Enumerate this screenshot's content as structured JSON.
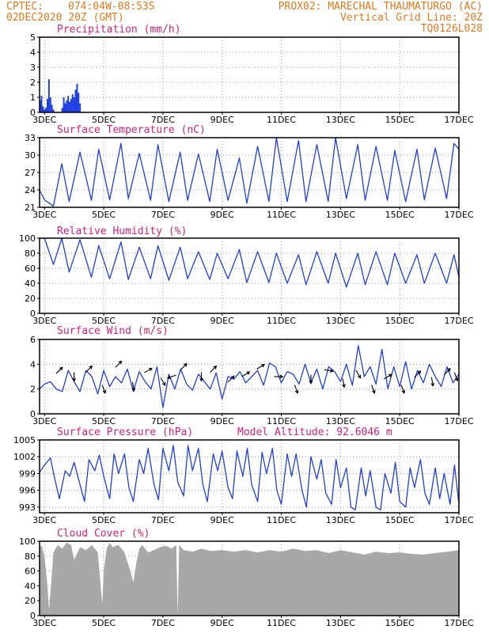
{
  "header": {
    "line1_left": "CPTEC:",
    "line1_coords": "074:04W-08:53S",
    "line1_right": "PROX02: MARECHAL THAUMATURGO (AC)",
    "line2_left": "02DEC2020 20Z (GMT)",
    "line2_right": "Vertical Grid Line: 20Z",
    "line3_right": "TQ0126L028"
  },
  "colors": {
    "header": "#e07a1f",
    "panel_title": "#d6207a",
    "series_line": "#1f3fe0",
    "precip_bar": "#1f3fe0",
    "cloud_fill": "#a8a8a8",
    "wind_arrow": "#000000"
  },
  "x_axis": {
    "start": "02DEC2020 20Z",
    "ticks": [
      {
        "day": 3,
        "label": "3DEC"
      },
      {
        "day": 5,
        "label": "5DEC"
      },
      {
        "day": 7,
        "label": "7DEC"
      },
      {
        "day": 9,
        "label": "9DEC"
      },
      {
        "day": 11,
        "label": "11DEC"
      },
      {
        "day": 13,
        "label": "13DEC"
      },
      {
        "day": 15,
        "label": "15DEC"
      },
      {
        "day": 17,
        "label": "17DEC"
      }
    ]
  },
  "chart_data": [
    {
      "type": "bar",
      "title": "Precipitation (mm/h)",
      "ylim": [
        0,
        5
      ],
      "yticks": [
        0,
        1,
        2,
        3,
        4,
        5
      ],
      "x": [
        2.85,
        2.9,
        2.95,
        3.0,
        3.05,
        3.1,
        3.15,
        3.2,
        3.25,
        3.3,
        3.6,
        3.65,
        3.7,
        3.75,
        3.8,
        3.85,
        3.9,
        3.95,
        4.0,
        4.05,
        4.1,
        4.15,
        4.2
      ],
      "values": [
        0.8,
        1.1,
        0.4,
        0.2,
        0.3,
        0.9,
        2.2,
        1.0,
        0.5,
        0.2,
        0.3,
        1.0,
        0.6,
        0.8,
        1.1,
        0.7,
        0.9,
        1.2,
        1.0,
        1.5,
        1.9,
        1.3,
        0.6
      ]
    },
    {
      "type": "line",
      "title": "Surface Temperature (nC)",
      "ylim": [
        21,
        33
      ],
      "yticks": [
        21,
        24,
        27,
        30,
        33
      ],
      "x": [
        2.833,
        3.0,
        3.3,
        3.583,
        3.833,
        4.2,
        4.583,
        4.833,
        5.2,
        5.583,
        5.833,
        6.2,
        6.583,
        6.833,
        7.2,
        7.583,
        7.833,
        8.2,
        8.583,
        8.833,
        9.2,
        9.583,
        9.833,
        10.2,
        10.583,
        10.833,
        11.2,
        11.583,
        11.833,
        12.2,
        12.583,
        12.833,
        13.2,
        13.583,
        13.833,
        14.2,
        14.583,
        14.833,
        15.2,
        15.583,
        15.833,
        16.2,
        16.583,
        16.833,
        17.0
      ],
      "values": [
        24.0,
        22.3,
        21.2,
        28.5,
        22.0,
        30.5,
        22.2,
        31.0,
        22.3,
        32.0,
        22.5,
        30.3,
        22.2,
        31.8,
        22.0,
        30.5,
        22.2,
        30.2,
        22.0,
        31.0,
        22.2,
        29.5,
        21.7,
        31.5,
        22.0,
        33.0,
        22.0,
        32.5,
        22.0,
        31.8,
        22.0,
        33.0,
        22.5,
        31.8,
        22.2,
        31.5,
        22.2,
        30.8,
        22.0,
        31.0,
        22.3,
        31.2,
        22.5,
        32.0,
        31.0
      ]
    },
    {
      "type": "line",
      "title": "Relative Humidity (%)",
      "ylim": [
        0,
        100
      ],
      "yticks": [
        0,
        20,
        40,
        60,
        80,
        100
      ],
      "x": [
        2.833,
        3.0,
        3.3,
        3.583,
        3.833,
        4.2,
        4.583,
        4.833,
        5.2,
        5.583,
        5.833,
        6.2,
        6.583,
        6.833,
        7.2,
        7.583,
        7.833,
        8.2,
        8.583,
        8.833,
        9.2,
        9.583,
        9.833,
        10.2,
        10.583,
        10.833,
        11.2,
        11.583,
        11.833,
        12.2,
        12.583,
        12.833,
        13.2,
        13.583,
        13.833,
        14.2,
        14.583,
        14.833,
        15.2,
        15.583,
        15.833,
        16.2,
        16.583,
        16.833,
        17.0
      ],
      "values": [
        100,
        100,
        65,
        100,
        55,
        98,
        48,
        90,
        46,
        95,
        45,
        88,
        46,
        90,
        44,
        88,
        46,
        82,
        45,
        80,
        46,
        85,
        41,
        82,
        41,
        80,
        40,
        78,
        38,
        82,
        40,
        80,
        35,
        80,
        38,
        82,
        38,
        80,
        40,
        78,
        40,
        80,
        40,
        78,
        48
      ]
    },
    {
      "type": "line",
      "title": "Surface Wind (m/s)",
      "ylim": [
        0,
        6
      ],
      "yticks": [
        0,
        2,
        4,
        6
      ],
      "x": [
        2.833,
        3.0,
        3.2,
        3.4,
        3.6,
        3.8,
        4.0,
        4.2,
        4.4,
        4.6,
        4.8,
        5.0,
        5.2,
        5.4,
        5.6,
        5.8,
        6.0,
        6.2,
        6.4,
        6.6,
        6.8,
        7.0,
        7.2,
        7.4,
        7.6,
        7.8,
        8.0,
        8.2,
        8.4,
        8.6,
        8.8,
        9.0,
        9.2,
        9.4,
        9.6,
        9.8,
        10.0,
        10.2,
        10.4,
        10.6,
        10.8,
        11.0,
        11.2,
        11.4,
        11.6,
        11.8,
        12.0,
        12.2,
        12.4,
        12.6,
        12.8,
        13.0,
        13.2,
        13.4,
        13.6,
        13.8,
        14.0,
        14.2,
        14.4,
        14.6,
        14.8,
        15.0,
        15.2,
        15.4,
        15.6,
        15.8,
        16.0,
        16.2,
        16.4,
        16.6,
        16.8,
        17.0
      ],
      "values": [
        2.0,
        2.4,
        2.6,
        2.0,
        1.8,
        3.5,
        2.6,
        1.8,
        3.5,
        3.0,
        1.6,
        3.5,
        2.2,
        3.0,
        2.5,
        3.6,
        1.8,
        3.4,
        2.6,
        2.0,
        3.8,
        0.5,
        3.2,
        2.0,
        3.6,
        2.4,
        1.9,
        3.2,
        2.6,
        2.0,
        3.3,
        1.2,
        3.0,
        2.8,
        3.4,
        2.5,
        3.0,
        3.5,
        2.3,
        4.1,
        3.8,
        2.5,
        3.4,
        3.2,
        2.4,
        4.0,
        2.5,
        3.6,
        2.0,
        3.8,
        3.4,
        2.6,
        4.0,
        2.3,
        5.5,
        3.0,
        3.8,
        2.4,
        5.2,
        2.0,
        3.8,
        2.2,
        4.2,
        2.0,
        3.5,
        2.5,
        4.0,
        3.0,
        2.2,
        3.8,
        2.5,
        3.2
      ],
      "arrows": [
        {
          "x": 3.5,
          "y": 3.5,
          "dir": 45
        },
        {
          "x": 4.0,
          "y": 3.0,
          "dir": 180
        },
        {
          "x": 4.5,
          "y": 3.6,
          "dir": 45
        },
        {
          "x": 5.0,
          "y": 2.0,
          "dir": 160
        },
        {
          "x": 5.5,
          "y": 4.0,
          "dir": 45
        },
        {
          "x": 6.0,
          "y": 2.2,
          "dir": 170
        },
        {
          "x": 6.5,
          "y": 3.5,
          "dir": 60
        },
        {
          "x": 7.0,
          "y": 2.6,
          "dir": 150
        },
        {
          "x": 7.3,
          "y": 3.0,
          "dir": 250
        },
        {
          "x": 7.7,
          "y": 3.8,
          "dir": 45
        },
        {
          "x": 8.3,
          "y": 3.0,
          "dir": 180
        },
        {
          "x": 8.7,
          "y": 3.6,
          "dir": 45
        },
        {
          "x": 9.3,
          "y": 2.8,
          "dir": 45
        },
        {
          "x": 9.8,
          "y": 3.2,
          "dir": 60
        },
        {
          "x": 10.3,
          "y": 3.8,
          "dir": 60
        },
        {
          "x": 10.9,
          "y": 3.0,
          "dir": 90
        },
        {
          "x": 11.5,
          "y": 2.0,
          "dir": 160
        },
        {
          "x": 12.0,
          "y": 2.8,
          "dir": 180
        },
        {
          "x": 12.6,
          "y": 3.5,
          "dir": 100
        },
        {
          "x": 13.1,
          "y": 2.5,
          "dir": 170
        },
        {
          "x": 13.6,
          "y": 3.2,
          "dir": 150
        },
        {
          "x": 14.1,
          "y": 2.0,
          "dir": 160
        },
        {
          "x": 14.6,
          "y": 3.0,
          "dir": 60
        },
        {
          "x": 15.1,
          "y": 2.0,
          "dir": 160
        },
        {
          "x": 15.6,
          "y": 3.2,
          "dir": 45
        },
        {
          "x": 16.1,
          "y": 2.6,
          "dir": 170
        },
        {
          "x": 16.6,
          "y": 3.4,
          "dir": 45
        },
        {
          "x": 16.9,
          "y": 3.0,
          "dir": 160
        }
      ]
    },
    {
      "type": "line",
      "title": "Surface Pressure (hPa)",
      "annotation": "Model Altitude: 92.6046 m",
      "ylim": [
        992,
        1005
      ],
      "yticks": [
        993,
        996,
        999,
        1002,
        1005
      ],
      "x": [
        2.833,
        3.0,
        3.2,
        3.35,
        3.5,
        3.7,
        3.85,
        4.0,
        4.2,
        4.35,
        4.5,
        4.7,
        4.85,
        5.0,
        5.2,
        5.35,
        5.5,
        5.7,
        5.85,
        6.0,
        6.2,
        6.35,
        6.5,
        6.7,
        6.85,
        7.0,
        7.2,
        7.35,
        7.5,
        7.7,
        7.85,
        8.0,
        8.2,
        8.35,
        8.5,
        8.7,
        8.85,
        9.0,
        9.2,
        9.35,
        9.5,
        9.7,
        9.85,
        10.0,
        10.2,
        10.35,
        10.5,
        10.7,
        10.85,
        11.0,
        11.2,
        11.35,
        11.5,
        11.7,
        11.85,
        12.0,
        12.2,
        12.35,
        12.5,
        12.7,
        12.85,
        13.0,
        13.2,
        13.35,
        13.5,
        13.7,
        13.85,
        14.0,
        14.2,
        14.35,
        14.5,
        14.7,
        14.85,
        15.0,
        15.2,
        15.35,
        15.5,
        15.7,
        15.85,
        16.0,
        16.2,
        16.35,
        16.5,
        16.7,
        16.85,
        17.0
      ],
      "values": [
        999.2,
        1000.5,
        1001.8,
        998.0,
        994.5,
        999.5,
        998.5,
        1001.0,
        997.0,
        994.0,
        1001.5,
        999.5,
        1002.3,
        998.5,
        994.5,
        1002.5,
        999.0,
        1002.5,
        996.5,
        994.0,
        1001.5,
        999.0,
        1003.5,
        997.0,
        994.3,
        1003.5,
        999.5,
        1004.0,
        997.5,
        995.0,
        1004.0,
        999.5,
        1003.5,
        997.0,
        994.0,
        1002.5,
        999.5,
        1003.0,
        996.5,
        994.5,
        1003.0,
        998.5,
        1003.5,
        997.0,
        994.0,
        1002.8,
        999.0,
        1003.5,
        996.0,
        993.5,
        1002.5,
        998.5,
        1002.5,
        996.0,
        993.0,
        1002.0,
        998.0,
        1001.5,
        995.5,
        993.5,
        1001.5,
        996.5,
        1000.0,
        993.0,
        992.5,
        1000.0,
        995.0,
        999.5,
        993.0,
        992.5,
        999.0,
        995.5,
        1001.0,
        994.0,
        993.0,
        1000.0,
        996.5,
        1001.5,
        995.5,
        993.5,
        1000.0,
        994.5,
        999.0,
        993.5,
        1000.5,
        993.5
      ]
    },
    {
      "type": "area",
      "title": "Cloud Cover (%)",
      "ylim": [
        0,
        100
      ],
      "yticks": [
        0,
        20,
        40,
        60,
        80,
        100
      ],
      "x": [
        2.833,
        2.9,
        3.0,
        3.1,
        3.15,
        3.2,
        3.3,
        3.45,
        3.6,
        3.75,
        3.9,
        4.0,
        4.2,
        4.4,
        4.6,
        4.8,
        4.95,
        5.0,
        5.1,
        5.2,
        5.3,
        5.5,
        5.7,
        5.9,
        6.0,
        6.1,
        6.2,
        6.3,
        6.5,
        6.7,
        6.9,
        7.1,
        7.3,
        7.45,
        7.5,
        7.55,
        7.7,
        8.0,
        8.3,
        8.6,
        9.0,
        9.4,
        9.8,
        10.2,
        10.6,
        11.0,
        11.4,
        11.8,
        12.2,
        12.6,
        13.0,
        13.4,
        13.8,
        14.2,
        14.6,
        15.0,
        15.4,
        15.8,
        16.2,
        16.6,
        17.0
      ],
      "values": [
        90,
        95,
        80,
        40,
        8,
        30,
        85,
        95,
        90,
        98,
        95,
        75,
        92,
        88,
        95,
        85,
        15,
        60,
        90,
        98,
        92,
        95,
        85,
        60,
        45,
        70,
        90,
        95,
        85,
        88,
        92,
        94,
        90,
        95,
        0,
        95,
        88,
        86,
        90,
        87,
        88,
        86,
        88,
        85,
        88,
        86,
        90,
        87,
        88,
        84,
        88,
        85,
        82,
        86,
        84,
        85,
        83,
        82,
        84,
        86,
        88
      ]
    }
  ]
}
